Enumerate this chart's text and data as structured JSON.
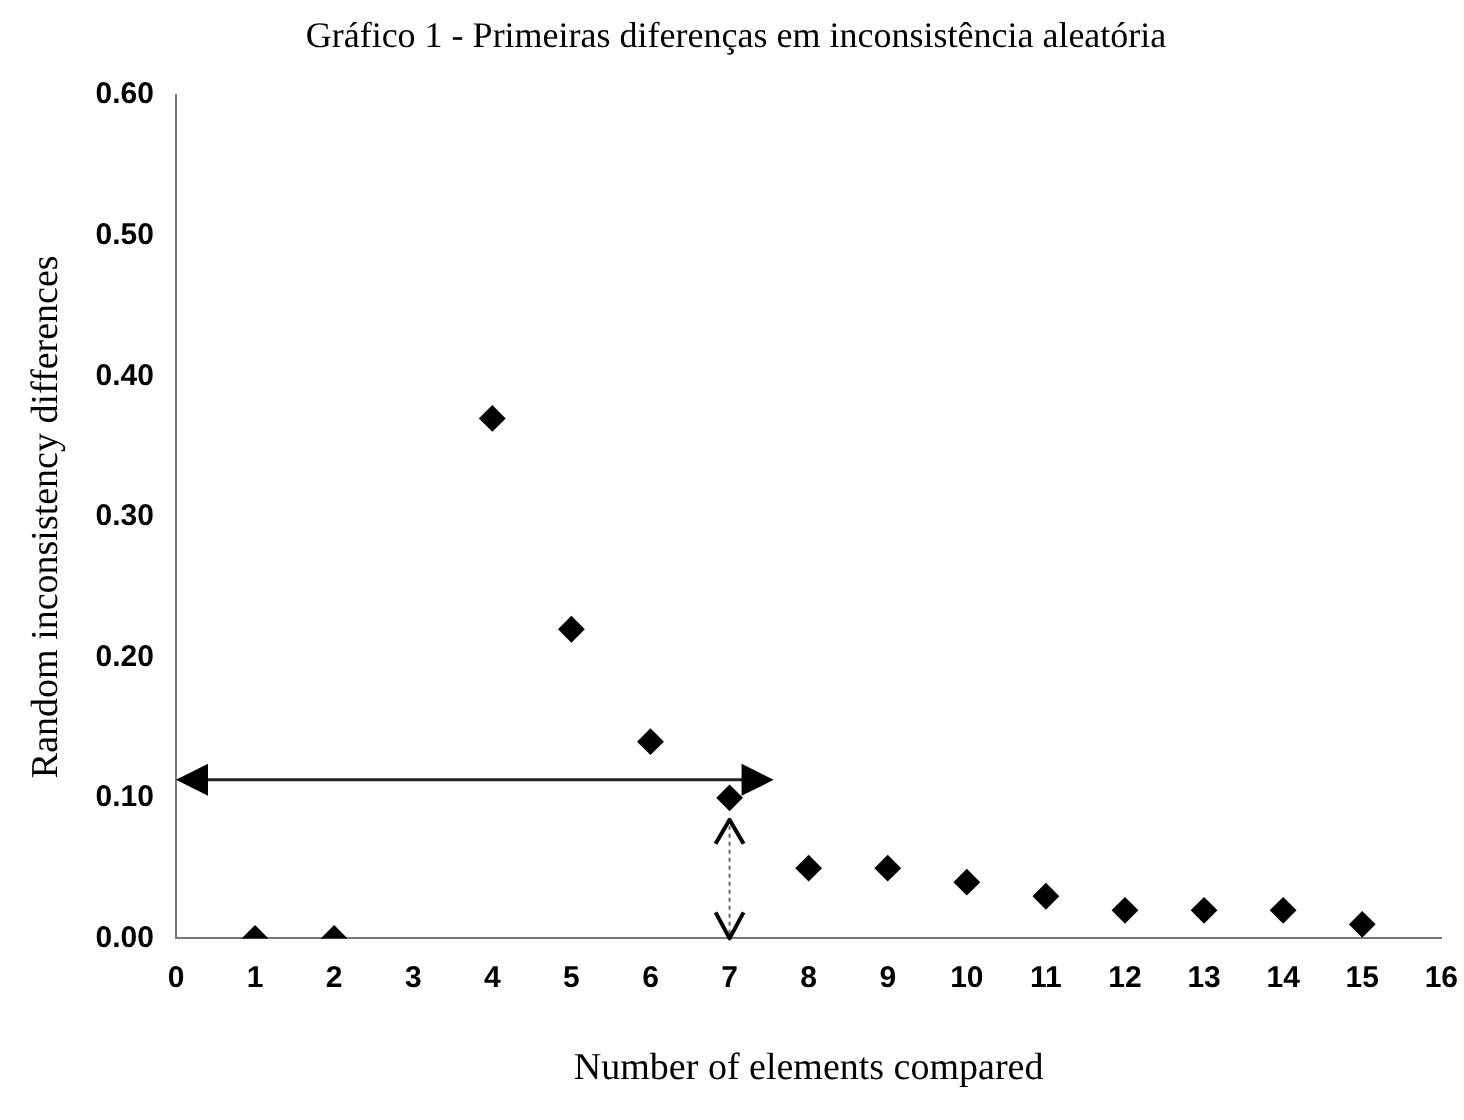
{
  "chart_data": {
    "type": "scatter",
    "title": "Gráfico 1 - Primeiras diferenças em inconsistência aleatória",
    "xlabel": "Number of elements compared",
    "ylabel": "Random inconsistency differences",
    "x": [
      1,
      2,
      4,
      5,
      6,
      7,
      8,
      9,
      10,
      11,
      12,
      13,
      14,
      15
    ],
    "series": [
      {
        "color": "#000000",
        "values": [
          0,
          0,
          0.37,
          0.22,
          0.14,
          0.1,
          0.05,
          0.05,
          0.04,
          0.03,
          0.02,
          0.02,
          0.02,
          0.01
        ]
      }
    ],
    "xlim": [
      0,
      16
    ],
    "xticks": [
      0,
      1,
      2,
      3,
      4,
      5,
      6,
      7,
      8,
      9,
      10,
      11,
      12,
      13,
      14,
      15,
      16
    ],
    "ylim": [
      0,
      0.6
    ],
    "yticks": [
      {
        "value": 0,
        "label": "0.00"
      },
      {
        "value": 0.1,
        "label": "0.10"
      },
      {
        "value": 0.2,
        "label": "0.20"
      },
      {
        "value": 0.3,
        "label": "0.30"
      },
      {
        "value": 0.4,
        "label": "0.40"
      },
      {
        "value": 0.5,
        "label": "0.50"
      },
      {
        "value": 0.6,
        "label": "0.60"
      }
    ],
    "grid": false,
    "legend": false,
    "marker": "diamond"
  }
}
